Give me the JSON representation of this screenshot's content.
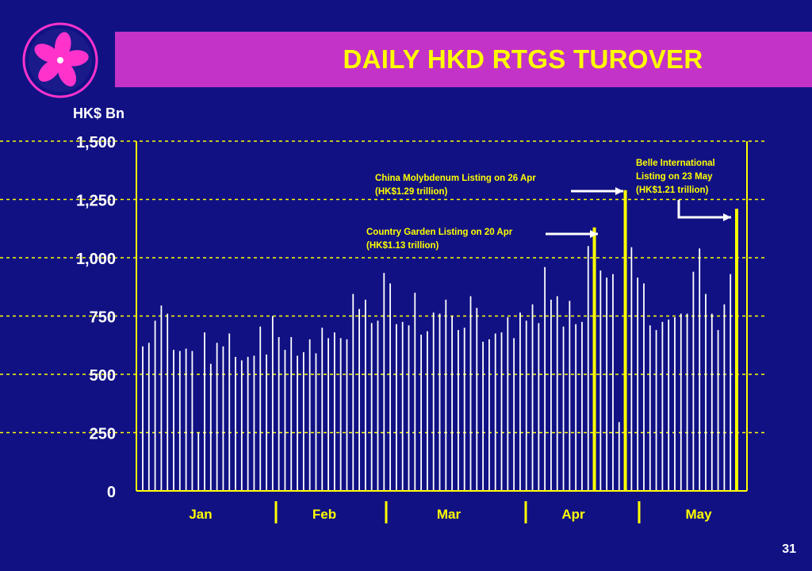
{
  "slide": {
    "title": "DAILY HKD RTGS TUROVER",
    "page_number": "31"
  },
  "logo": {
    "icon": "bauhinia-icon",
    "color": "#ff33cc"
  },
  "colors": {
    "background": "#111184",
    "title_bar": "#c433c8",
    "title_text": "#ffff00",
    "bars": "#ffffff",
    "highlight": "#ffff00",
    "grid": "#ffff00"
  },
  "chart_data": {
    "type": "bar",
    "ylabel": "HK$ Bn",
    "ylim": [
      0,
      1500
    ],
    "yticks": [
      0,
      250,
      500,
      750,
      1000,
      1250,
      1500
    ],
    "ytick_labels": [
      "0",
      "250",
      "500",
      "750",
      "1,000",
      "1,250",
      "1,500"
    ],
    "grid": true,
    "months": [
      "Jan",
      "Feb",
      "Mar",
      "Apr",
      "May"
    ],
    "values": [
      620,
      635,
      730,
      795,
      760,
      605,
      600,
      610,
      600,
      250,
      680,
      545,
      635,
      620,
      675,
      575,
      560,
      575,
      580,
      705,
      585,
      750,
      660,
      605,
      660,
      580,
      595,
      650,
      590,
      700,
      655,
      680,
      655,
      650,
      845,
      780,
      820,
      720,
      730,
      935,
      890,
      715,
      725,
      710,
      850,
      670,
      685,
      765,
      760,
      820,
      750,
      690,
      700,
      835,
      785,
      640,
      650,
      675,
      680,
      745,
      655,
      765,
      730,
      800,
      720,
      960,
      820,
      835,
      705,
      815,
      715,
      725,
      1050,
      1130,
      945,
      915,
      930,
      295,
      1290,
      1045,
      915,
      890,
      710,
      690,
      725,
      735,
      745,
      760,
      760,
      940,
      1040,
      845,
      760,
      690,
      800,
      930,
      1210
    ],
    "highlighted": [
      {
        "index": 73,
        "label": "Country Garden Listing on 20 Apr",
        "sub": "(HK$1.13 trillion)"
      },
      {
        "index": 78,
        "label": "China Molybdenum Listing on 26 Apr",
        "sub": "(HK$1.29 trillion)"
      },
      {
        "index": 96,
        "label": "Belle International Listing on 23 May",
        "sub": "(HK$1.21 trillion)"
      }
    ],
    "annotations": [
      {
        "text": "China Molybdenum Listing on 26 Apr",
        "sub": "(HK$1.29 trillion)"
      },
      {
        "text": "Country Garden Listing on 20 Apr",
        "sub": "(HK$1.13 trillion)"
      },
      {
        "text": "Belle International\nListing on 23 May",
        "sub": "(HK$1.21 trillion)"
      }
    ]
  }
}
